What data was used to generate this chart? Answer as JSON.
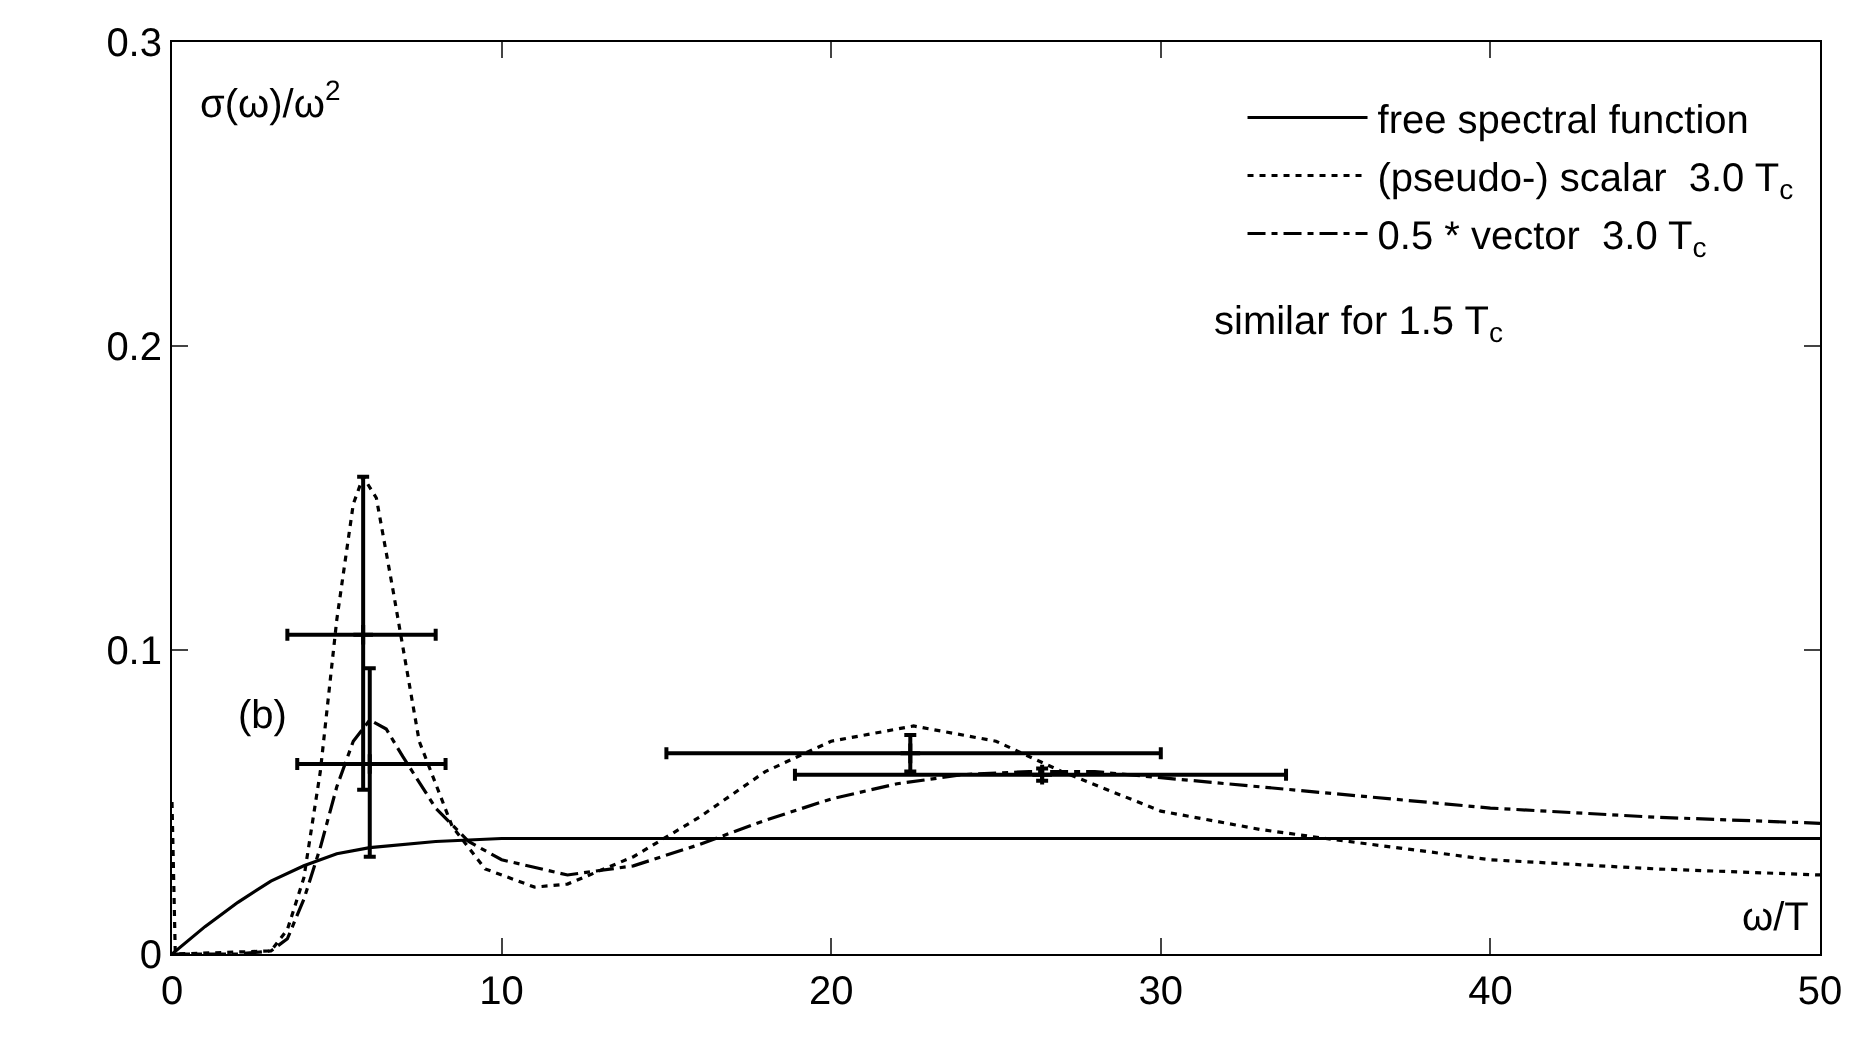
{
  "chart_data": {
    "type": "line",
    "xlabel": "ω/T",
    "ylabel": "σ(ω)/ω$^{2}$",
    "xlim": [
      0,
      50
    ],
    "xticks": [
      0,
      10,
      20,
      30,
      40,
      50
    ],
    "ylim": [
      0,
      0.3
    ],
    "yticks": [
      0,
      0.1,
      0.2,
      0.3
    ],
    "grid": false,
    "legend": "top right",
    "marker": "none",
    "annotations": [
      "similar for 1.5 T$_{c}$",
      "(b)"
    ],
    "series": [
      {
        "name": "free spectral function",
        "color": "#000000",
        "line_style": "solid",
        "x": [
          0,
          1,
          2,
          3,
          4,
          5,
          6,
          8,
          10,
          50
        ],
        "values": [
          0,
          0.009,
          0.017,
          0.024,
          0.029,
          0.033,
          0.035,
          0.037,
          0.038,
          0.038
        ]
      },
      {
        "name": "(pseudo-) scalar  3.0 T$_{c}$",
        "color": "#000000",
        "line_style": "dotted",
        "x": [
          0,
          0.1,
          3,
          3.5,
          4,
          4.5,
          5,
          5.5,
          5.8,
          6.2,
          6.7,
          7.5,
          8.5,
          9.5,
          11,
          12,
          14,
          16,
          18,
          20,
          22.5,
          25,
          27,
          30,
          33,
          35,
          40,
          45,
          50
        ],
        "values": [
          0.05,
          0,
          0.001,
          0.008,
          0.025,
          0.06,
          0.11,
          0.148,
          0.157,
          0.15,
          0.12,
          0.07,
          0.042,
          0.028,
          0.022,
          0.023,
          0.032,
          0.045,
          0.06,
          0.07,
          0.075,
          0.07,
          0.06,
          0.047,
          0.041,
          0.038,
          0.031,
          0.028,
          0.026
        ]
      },
      {
        "name": "0.5 * vector  3.0 T$_{c}$",
        "color": "#000000",
        "line_style": "dashdot",
        "x": [
          0,
          2,
          3,
          3.5,
          4,
          4.5,
          5,
          5.5,
          6,
          6.5,
          7,
          8,
          9,
          10,
          12,
          14,
          16,
          18,
          20,
          22,
          24,
          26,
          28,
          30,
          35,
          40,
          45,
          50
        ],
        "values": [
          0,
          0,
          0.001,
          0.005,
          0.018,
          0.035,
          0.055,
          0.07,
          0.077,
          0.074,
          0.065,
          0.048,
          0.037,
          0.031,
          0.026,
          0.029,
          0.036,
          0.044,
          0.051,
          0.056,
          0.059,
          0.06,
          0.06,
          0.058,
          0.053,
          0.048,
          0.045,
          0.043
        ]
      },
      {
        "type": "scatter",
        "marker": "cross",
        "color": "#000000",
        "x": [
          5.8,
          22.4
        ],
        "values": [
          0.105,
          0.066
        ],
        "errors": [
          [
            0.054,
            0.157
          ],
          [
            0.06,
            0.072
          ]
        ],
        "xerrors": [
          [
            3.5,
            8.0
          ],
          [
            15.0,
            30.0
          ]
        ]
      },
      {
        "type": "scatter",
        "marker": "cross",
        "color": "#000000",
        "x": [
          6.0,
          26.4
        ],
        "values": [
          0.0625,
          0.059
        ],
        "errors": [
          [
            0.032,
            0.094
          ],
          [
            0.057,
            0.061
          ]
        ],
        "xerrors": [
          [
            3.8,
            8.3
          ],
          [
            18.9,
            33.8
          ]
        ]
      }
    ]
  }
}
